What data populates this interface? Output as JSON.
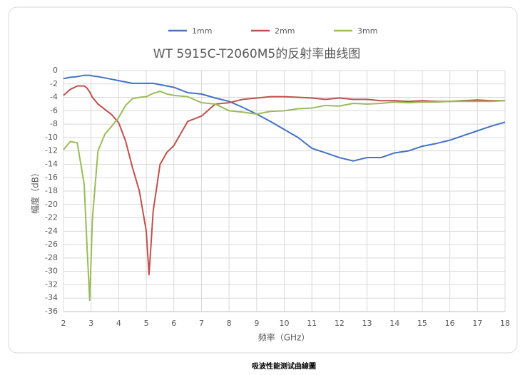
{
  "chart_data": {
    "type": "line",
    "title": "WT 5915C-T2060M5的反射率曲线图",
    "x_label": "频率（GHz）",
    "y_label": "幅度（dB）",
    "caption": "吸波性能测试曲線圖",
    "x": [
      2,
      2.25,
      2.5,
      2.75,
      2.85,
      2.95,
      3.05,
      3.25,
      3.5,
      3.75,
      4,
      4.25,
      4.5,
      4.75,
      5,
      5.1,
      5.25,
      5.5,
      5.75,
      6,
      6.5,
      7,
      7.5,
      8,
      8.5,
      9,
      9.5,
      10,
      10.5,
      11,
      11.5,
      12,
      12.5,
      13,
      13.5,
      14,
      14.5,
      15,
      15.5,
      16,
      16.5,
      17,
      17.5,
      18
    ],
    "series": [
      {
        "name": "1mm",
        "color": "#4472c4",
        "values": [
          -1.2,
          -1.0,
          -0.9,
          -0.7,
          -0.7,
          -0.7,
          -0.8,
          -0.9,
          -1.1,
          -1.3,
          -1.5,
          -1.7,
          -1.9,
          -1.9,
          -1.9,
          -1.9,
          -1.9,
          -2.1,
          -2.3,
          -2.5,
          -3.3,
          -3.5,
          -4.1,
          -4.6,
          -5.5,
          -6.5,
          -7.6,
          -8.8,
          -10.0,
          -11.6,
          -12.3,
          -13.0,
          -13.5,
          -13.0,
          -13.0,
          -12.3,
          -12.0,
          -11.3,
          -10.9,
          -10.4,
          -9.7,
          -9.0,
          -8.3,
          -7.7
        ]
      },
      {
        "name": "2mm",
        "color": "#c0504d",
        "values": [
          -3.7,
          -2.8,
          -2.3,
          -2.3,
          -2.6,
          -3.2,
          -4.0,
          -5.0,
          -5.8,
          -6.6,
          -7.8,
          -10.5,
          -14.5,
          -18.0,
          -24.0,
          -30.5,
          -21.0,
          -14.0,
          -12.2,
          -11.2,
          -7.6,
          -6.8,
          -5.0,
          -4.8,
          -4.3,
          -4.1,
          -3.9,
          -3.9,
          -4.0,
          -4.1,
          -4.3,
          -4.1,
          -4.3,
          -4.3,
          -4.5,
          -4.5,
          -4.6,
          -4.5,
          -4.6,
          -4.6,
          -4.5,
          -4.4,
          -4.5,
          -4.5
        ]
      },
      {
        "name": "3mm",
        "color": "#9bbb59",
        "values": [
          -11.8,
          -10.6,
          -10.8,
          -17.0,
          -26.0,
          -34.3,
          -22.0,
          -12.0,
          -9.5,
          -8.3,
          -7.0,
          -5.2,
          -4.2,
          -4.0,
          -3.9,
          -3.7,
          -3.4,
          -3.1,
          -3.5,
          -3.7,
          -3.9,
          -4.8,
          -5.0,
          -6.0,
          -6.2,
          -6.5,
          -6.1,
          -6.0,
          -5.7,
          -5.6,
          -5.2,
          -5.3,
          -4.9,
          -5.0,
          -4.9,
          -4.7,
          -4.8,
          -4.7,
          -4.7,
          -4.6,
          -4.6,
          -4.6,
          -4.6,
          -4.5
        ]
      }
    ],
    "xlim": [
      2,
      18
    ],
    "xticks": [
      2,
      3,
      4,
      5,
      6,
      7,
      8,
      9,
      10,
      11,
      12,
      13,
      14,
      15,
      16,
      17,
      18
    ],
    "ylim": [
      -36,
      0
    ],
    "yticks": [
      0,
      -2,
      -4,
      -6,
      -8,
      -10,
      -12,
      -14,
      -16,
      -18,
      -20,
      -22,
      -24,
      -26,
      -28,
      -30,
      -32,
      -34,
      -36
    ],
    "grid": true,
    "legend": "top"
  }
}
